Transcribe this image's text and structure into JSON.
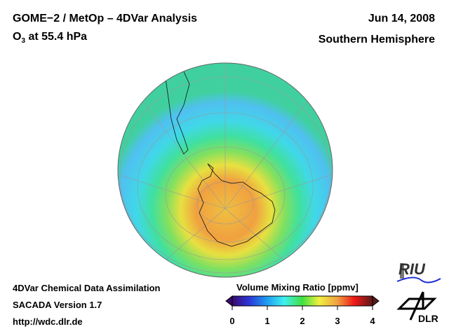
{
  "header": {
    "title_line1": "GOME−2 / MetOp – 4DVar Analysis",
    "title_line2_prefix": "O",
    "title_line2_sub": "3",
    "title_line2_suffix": " at 55.4 hPa",
    "date": "Jun 14, 2008",
    "region": "Southern Hemisphere"
  },
  "footer": {
    "line1": "4DVar Chemical Data Assimilation",
    "line2": "SACADA Version 1.7",
    "line3": "http://wdc.dlr.de"
  },
  "colorbar": {
    "title": "Volume Mixing Ratio [ppmv]",
    "ticks": [
      "0",
      "1",
      "2",
      "3",
      "4"
    ],
    "range": [
      0,
      4
    ],
    "colors": [
      "#3a0a6e",
      "#2b36d8",
      "#1f9ef0",
      "#3ff0f0",
      "#40e040",
      "#f0f040",
      "#f0a040",
      "#f01818",
      "#5a1a1a"
    ]
  },
  "logos": {
    "riu": "RIU",
    "dlr": "DLR"
  }
}
